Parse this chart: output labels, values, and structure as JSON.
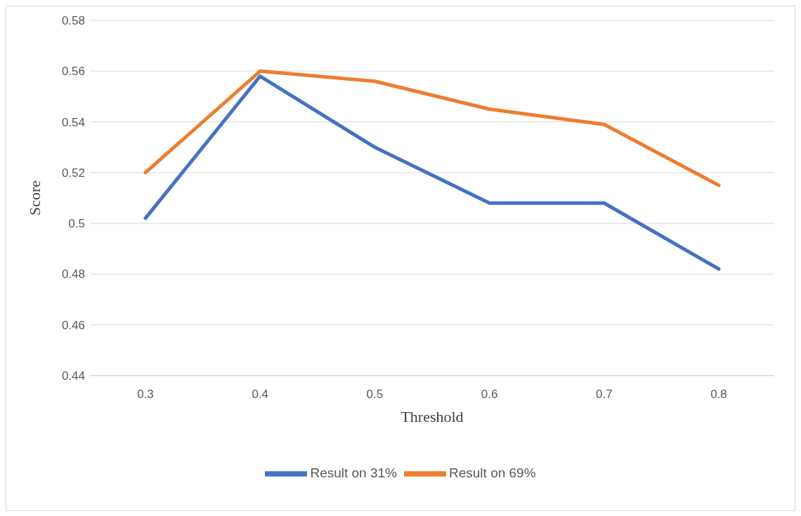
{
  "chart_data": {
    "type": "line",
    "xlabel": "Threshold",
    "ylabel": "Score",
    "categories": [
      "0.3",
      "0.4",
      "0.5",
      "0.6",
      "0.7",
      "0.8"
    ],
    "series": [
      {
        "name": "Result on 31%",
        "color": "#4472c4",
        "values": [
          0.502,
          0.558,
          0.53,
          0.508,
          0.508,
          0.482
        ]
      },
      {
        "name": "Result on 69%",
        "color": "#ed7d31",
        "values": [
          0.52,
          0.56,
          0.556,
          0.545,
          0.539,
          0.515
        ]
      }
    ],
    "ylim": [
      0.44,
      0.58
    ],
    "yticks": [
      0.44,
      0.46,
      0.48,
      0.5,
      0.52,
      0.54,
      0.56,
      0.58
    ],
    "grid": "y",
    "legend": "bottom",
    "marker": "none",
    "line_style": "solid"
  }
}
